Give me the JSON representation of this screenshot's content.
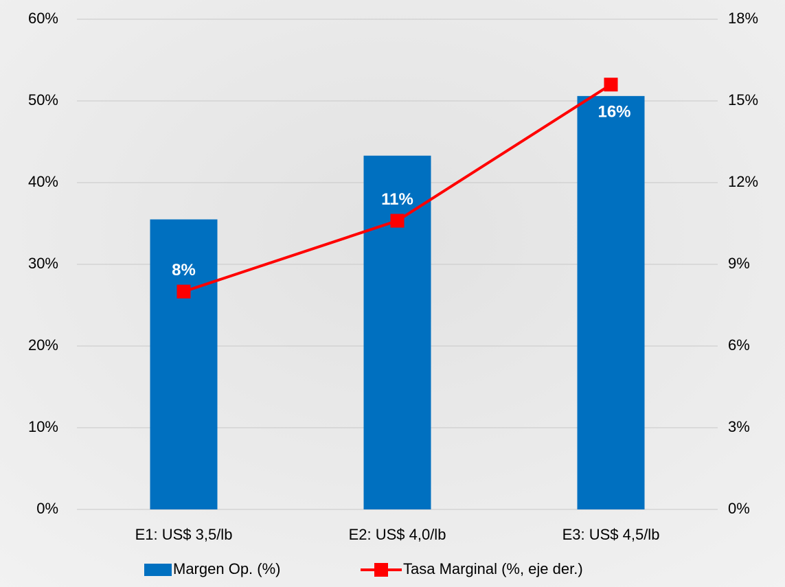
{
  "chart_data": {
    "type": "bar",
    "categories": [
      "E1: US$ 3,5/lb",
      "E2: US$ 4,0/lb",
      "E3: US$ 4,5/lb"
    ],
    "series": [
      {
        "name": "Margen Op. (%)",
        "type": "bar",
        "color": "#0070c0",
        "values": [
          35.5,
          43.3,
          50.6
        ]
      },
      {
        "name": "Tasa Marginal (%, eje der.)",
        "type": "line",
        "axis": "y2",
        "color": "#ff0000",
        "values": [
          8,
          10.6,
          15.6
        ],
        "value_labels": [
          "8%",
          "11%",
          "16%"
        ]
      }
    ],
    "ylim": [
      0,
      60
    ],
    "yticks": [
      {
        "value": 0,
        "label": "0%"
      },
      {
        "value": 10,
        "label": "10%"
      },
      {
        "value": 20,
        "label": "20%"
      },
      {
        "value": 30,
        "label": "30%"
      },
      {
        "value": 40,
        "label": "40%"
      },
      {
        "value": 50,
        "label": "50%"
      },
      {
        "value": 60,
        "label": "60%"
      }
    ],
    "y2lim": [
      0,
      18
    ],
    "y2ticks": [
      {
        "value": 0,
        "label": "0%"
      },
      {
        "value": 3,
        "label": "3%"
      },
      {
        "value": 6,
        "label": "6%"
      },
      {
        "value": 9,
        "label": "9%"
      },
      {
        "value": 12,
        "label": "12%"
      },
      {
        "value": 15,
        "label": "15%"
      },
      {
        "value": 18,
        "label": "18%"
      }
    ],
    "grid": true,
    "legend": "bottom"
  }
}
